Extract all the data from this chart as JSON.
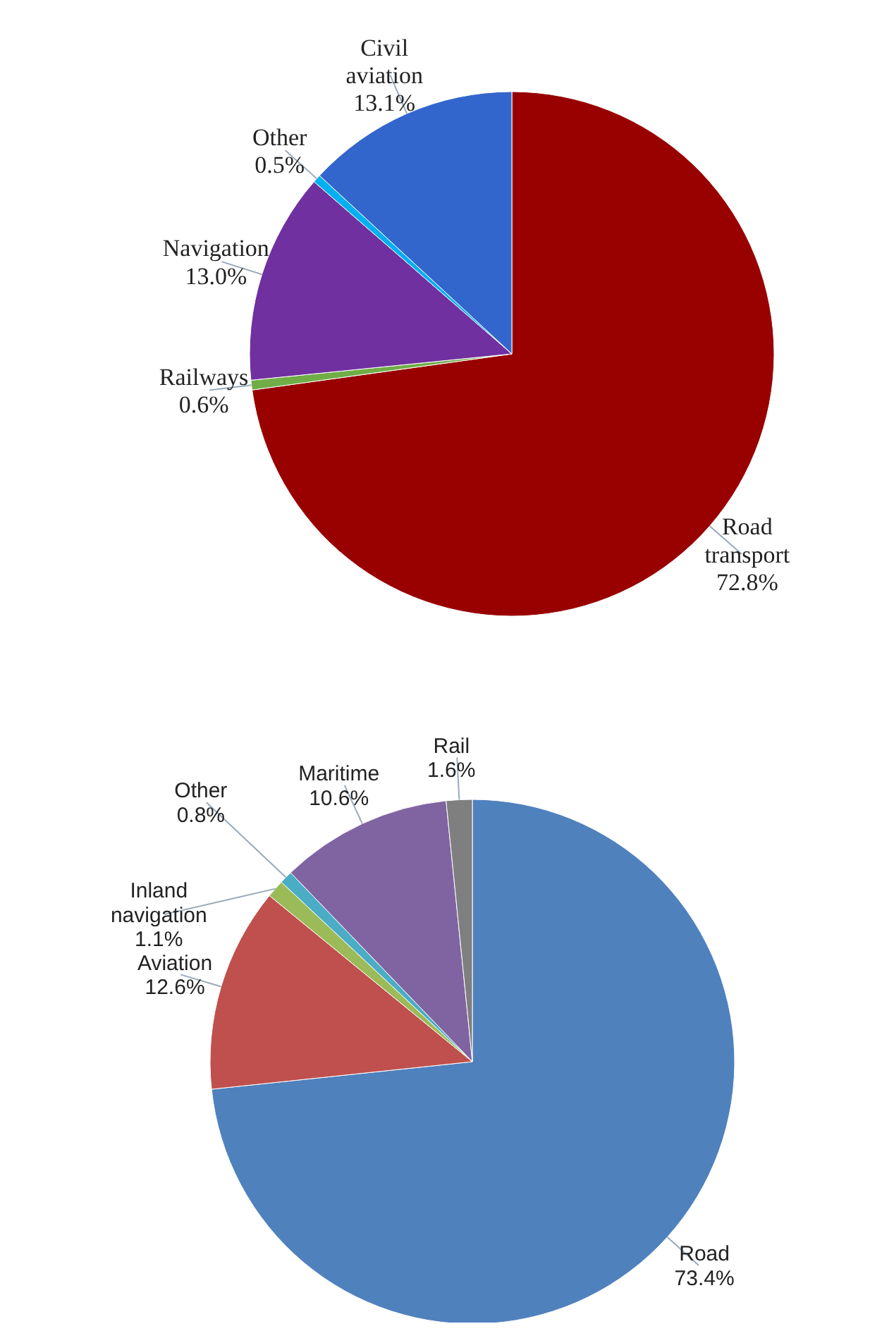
{
  "chart_data": [
    {
      "type": "pie",
      "categories": [
        "Road transport",
        "Railways",
        "Navigation",
        "Other",
        "Civil aviation"
      ],
      "values": [
        72.8,
        0.6,
        13.0,
        0.5,
        13.1
      ],
      "value_labels": [
        "72.8%",
        "0.6%",
        "13.0%",
        "0.5%",
        "13.1%"
      ],
      "colors": [
        "#990000",
        "#70ad47",
        "#7030a0",
        "#00b0f0",
        "#3366cc"
      ],
      "legend": false
    },
    {
      "type": "pie",
      "categories": [
        "Road",
        "Aviation",
        "Inland navigation",
        "Other",
        "Maritime",
        "Rail"
      ],
      "values": [
        73.4,
        12.6,
        1.1,
        0.8,
        10.6,
        1.6
      ],
      "value_labels": [
        "73.4%",
        "12.6%",
        "1.1%",
        "0.8%",
        "10.6%",
        "1.6%"
      ],
      "colors": [
        "#4f81bd",
        "#c0504d",
        "#9bbb59",
        "#4bacc6",
        "#8064a2",
        "#7f7f7f"
      ],
      "legend": false
    }
  ]
}
